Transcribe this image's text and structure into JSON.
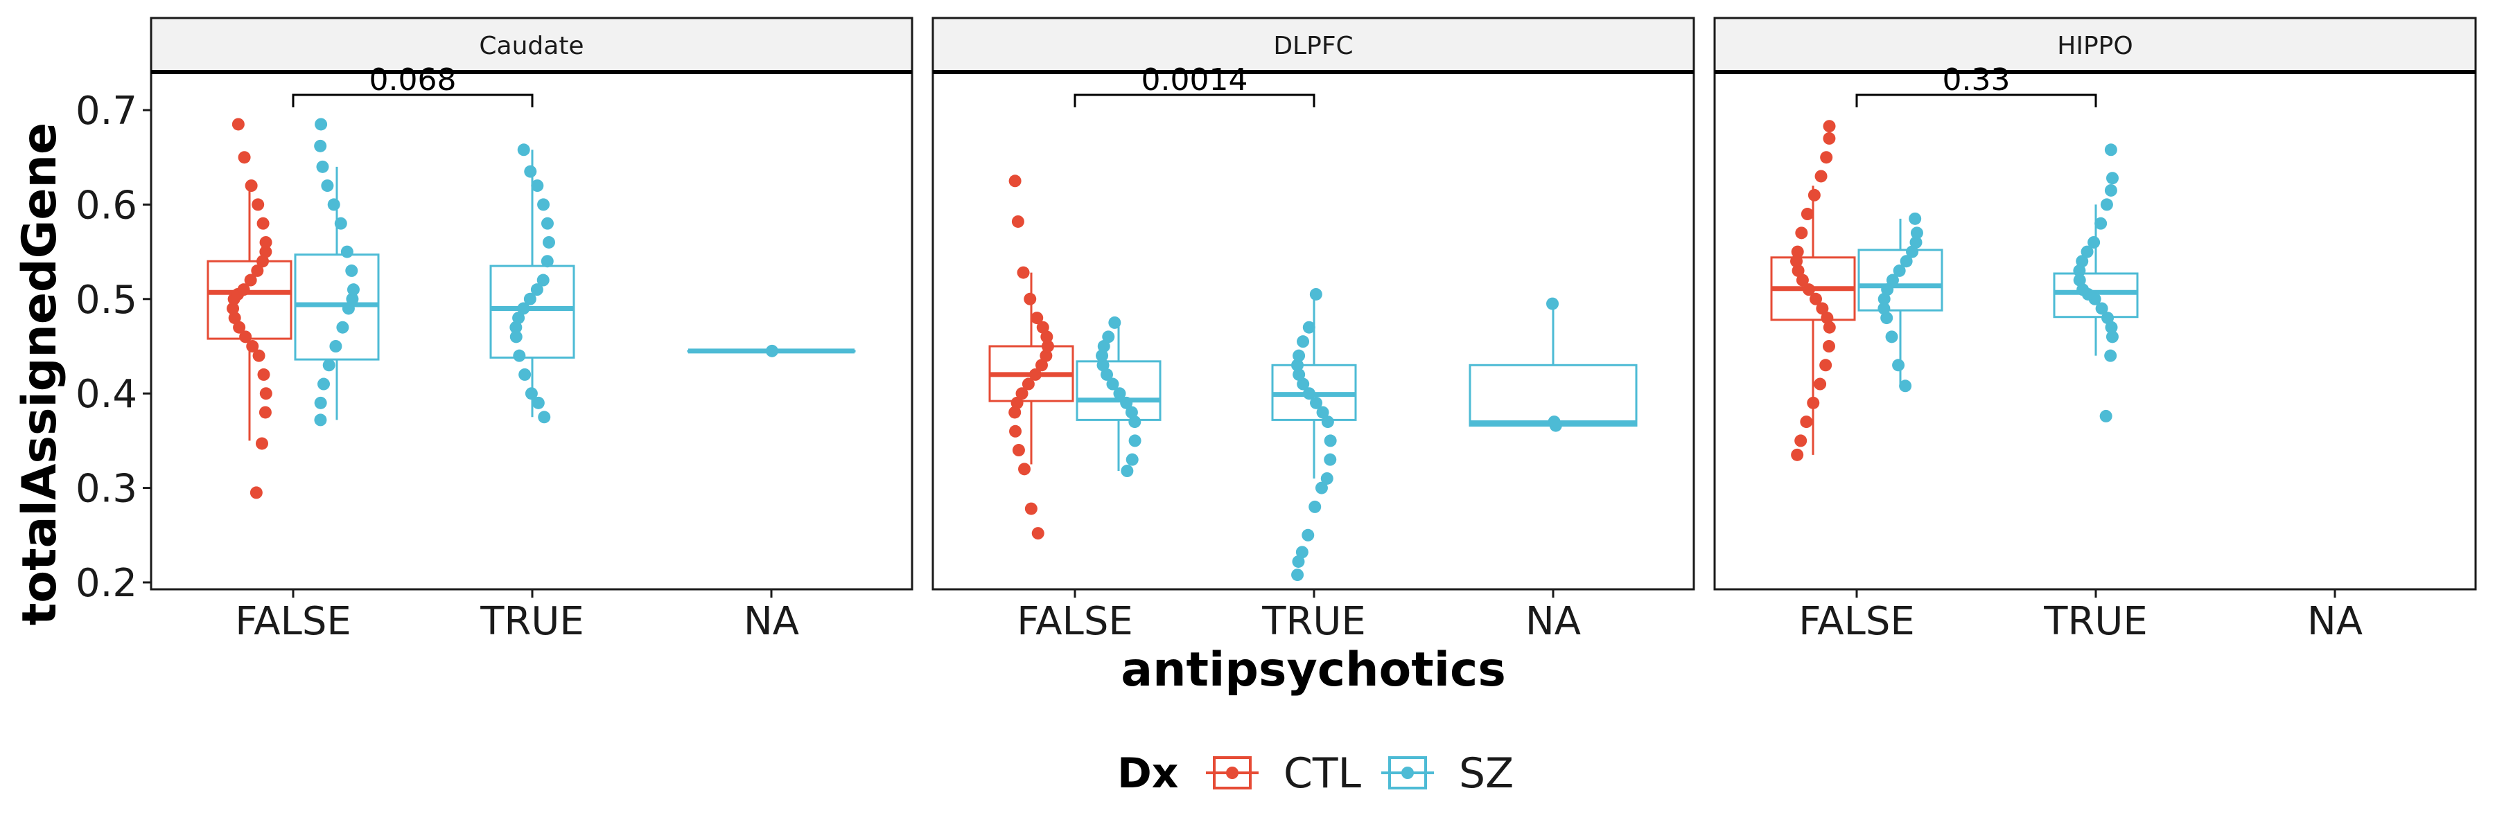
{
  "chart_data": {
    "type": "box",
    "facet_by": "tissue",
    "xlabel": "antipsychotics",
    "ylabel": "totalAssignedGene",
    "ylim": [
      0.18,
      0.74
    ],
    "y_ticks": [
      "0.2",
      "0.3",
      "0.4",
      "0.5",
      "0.6",
      "0.7"
    ],
    "categories": [
      "FALSE",
      "TRUE",
      "NA"
    ],
    "grid": false,
    "legend": {
      "title": "Dx",
      "position": "bottom",
      "entries": [
        {
          "name": "CTL",
          "color": "#E64B35"
        },
        {
          "name": "SZ",
          "color": "#4DBBD5"
        }
      ]
    },
    "panels": [
      {
        "strip": "Caudate",
        "pvalue": {
          "label": "0.068",
          "from": "FALSE",
          "to": "TRUE"
        },
        "boxes": [
          {
            "category": "FALSE",
            "group": "CTL",
            "whisker_low": 0.35,
            "q1": 0.458,
            "median": 0.507,
            "q3": 0.54,
            "whisker_high": 0.62,
            "points": [
              0.295,
              0.347,
              0.38,
              0.4,
              0.42,
              0.44,
              0.45,
              0.46,
              0.47,
              0.48,
              0.49,
              0.5,
              0.505,
              0.51,
              0.52,
              0.53,
              0.54,
              0.55,
              0.56,
              0.58,
              0.6,
              0.62,
              0.65,
              0.685
            ]
          },
          {
            "category": "FALSE",
            "group": "SZ",
            "whisker_low": 0.372,
            "q1": 0.436,
            "median": 0.494,
            "q3": 0.547,
            "whisker_high": 0.64,
            "points": [
              0.372,
              0.39,
              0.41,
              0.43,
              0.45,
              0.47,
              0.49,
              0.5,
              0.51,
              0.53,
              0.55,
              0.58,
              0.6,
              0.62,
              0.64,
              0.662,
              0.685
            ]
          },
          {
            "category": "TRUE",
            "group": "SZ",
            "whisker_low": 0.375,
            "q1": 0.438,
            "median": 0.49,
            "q3": 0.535,
            "whisker_high": 0.658,
            "points": [
              0.375,
              0.39,
              0.4,
              0.42,
              0.44,
              0.46,
              0.47,
              0.48,
              0.49,
              0.5,
              0.51,
              0.52,
              0.54,
              0.56,
              0.58,
              0.6,
              0.62,
              0.635,
              0.658
            ]
          },
          {
            "category": "NA",
            "group": "SZ",
            "whisker_low": 0.445,
            "q1": 0.445,
            "median": 0.445,
            "q3": 0.445,
            "whisker_high": 0.445,
            "points": [
              0.445
            ]
          }
        ]
      },
      {
        "strip": "DLPFC",
        "pvalue": {
          "label": "0.0014",
          "from": "FALSE",
          "to": "TRUE"
        },
        "boxes": [
          {
            "category": "FALSE",
            "group": "CTL",
            "whisker_low": 0.325,
            "q1": 0.392,
            "median": 0.42,
            "q3": 0.45,
            "whisker_high": 0.528,
            "points": [
              0.252,
              0.278,
              0.32,
              0.34,
              0.36,
              0.38,
              0.39,
              0.4,
              0.41,
              0.42,
              0.43,
              0.44,
              0.45,
              0.46,
              0.47,
              0.48,
              0.5,
              0.528,
              0.582,
              0.625
            ]
          },
          {
            "category": "FALSE",
            "group": "SZ",
            "whisker_low": 0.318,
            "q1": 0.372,
            "median": 0.393,
            "q3": 0.434,
            "whisker_high": 0.475,
            "points": [
              0.318,
              0.33,
              0.35,
              0.37,
              0.38,
              0.39,
              0.4,
              0.41,
              0.42,
              0.43,
              0.44,
              0.45,
              0.46,
              0.475
            ]
          },
          {
            "category": "TRUE",
            "group": "SZ",
            "whisker_low": 0.31,
            "q1": 0.372,
            "median": 0.399,
            "q3": 0.43,
            "whisker_high": 0.505,
            "points": [
              0.208,
              0.222,
              0.232,
              0.25,
              0.28,
              0.3,
              0.31,
              0.33,
              0.35,
              0.37,
              0.38,
              0.39,
              0.4,
              0.41,
              0.42,
              0.43,
              0.44,
              0.455,
              0.47,
              0.505
            ]
          },
          {
            "category": "NA",
            "group": "SZ",
            "whisker_low": 0.366,
            "q1": 0.366,
            "median": 0.369,
            "q3": 0.43,
            "whisker_high": 0.495,
            "points": [
              0.366,
              0.37,
              0.495
            ]
          }
        ]
      },
      {
        "strip": "HIPPO",
        "pvalue": {
          "label": "0.33",
          "from": "FALSE",
          "to": "TRUE"
        },
        "boxes": [
          {
            "category": "FALSE",
            "group": "CTL",
            "whisker_low": 0.335,
            "q1": 0.478,
            "median": 0.511,
            "q3": 0.544,
            "whisker_high": 0.62,
            "points": [
              0.335,
              0.35,
              0.37,
              0.39,
              0.41,
              0.43,
              0.45,
              0.47,
              0.48,
              0.49,
              0.5,
              0.51,
              0.52,
              0.53,
              0.54,
              0.55,
              0.57,
              0.59,
              0.61,
              0.63,
              0.65,
              0.67,
              0.683
            ]
          },
          {
            "category": "FALSE",
            "group": "SZ",
            "whisker_low": 0.408,
            "q1": 0.488,
            "median": 0.514,
            "q3": 0.552,
            "whisker_high": 0.585,
            "points": [
              0.408,
              0.43,
              0.46,
              0.48,
              0.49,
              0.5,
              0.51,
              0.52,
              0.53,
              0.54,
              0.55,
              0.56,
              0.57,
              0.585
            ]
          },
          {
            "category": "TRUE",
            "group": "SZ",
            "whisker_low": 0.44,
            "q1": 0.481,
            "median": 0.507,
            "q3": 0.527,
            "whisker_high": 0.6,
            "points": [
              0.376,
              0.44,
              0.46,
              0.47,
              0.48,
              0.49,
              0.5,
              0.505,
              0.51,
              0.52,
              0.53,
              0.54,
              0.55,
              0.56,
              0.58,
              0.6,
              0.615,
              0.628,
              0.658
            ]
          }
        ]
      }
    ]
  }
}
